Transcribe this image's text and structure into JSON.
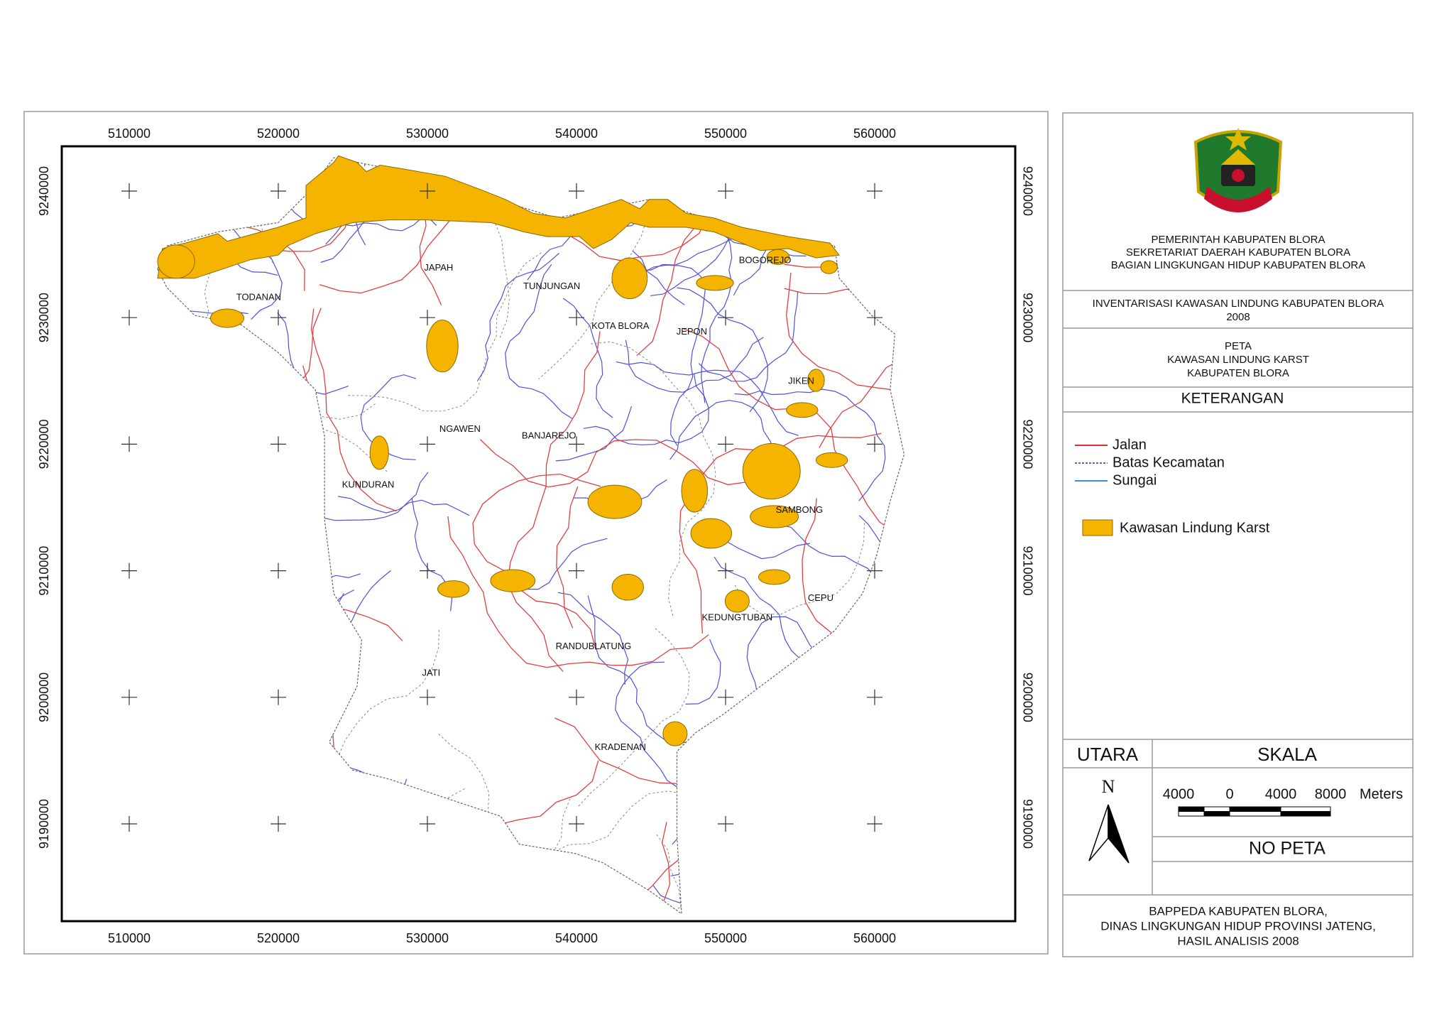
{
  "map": {
    "x_ticks": [
      510000,
      520000,
      530000,
      540000,
      550000,
      560000
    ],
    "y_ticks": [
      9240000,
      9230000,
      9220000,
      9210000,
      9200000,
      9190000
    ],
    "places": [
      "TODANAN",
      "JAPAH",
      "TUNJUNGAN",
      "KOTA BLORA",
      "JEPON",
      "BOGOREJO",
      "JIKEN",
      "NGAWEN",
      "BANJAREJO",
      "KUNDURAN",
      "SAMBONG",
      "CEPU",
      "KEDUNGTUBAN",
      "RANDUBLATUNG",
      "JATI",
      "KRADENAN"
    ]
  },
  "title_block": {
    "agency": [
      "PEMERINTAH KABUPATEN BLORA",
      "SEKRETARIAT DAERAH KABUPATEN BLORA",
      "BAGIAN LINGKUNGAN HIDUP KABUPATEN BLORA"
    ],
    "project": [
      "INVENTARISASI KAWASAN LINDUNG KABUPATEN BLORA",
      "2008"
    ],
    "map_title": [
      "PETA",
      "KAWASAN LINDUNG KARST",
      "KABUPATEN BLORA"
    ],
    "legend_heading": "KETERANGAN",
    "legend": [
      "Jalan",
      "Batas Kecamatan",
      "Sungai",
      "Kawasan Lindung Karst"
    ],
    "north_heading": "UTARA",
    "north_label": "N",
    "scale_heading": "SKALA",
    "scale_labels": [
      4000,
      0,
      4000,
      8000
    ],
    "scale_unit": "Meters",
    "map_number_label": "NO PETA",
    "source": [
      "BAPPEDA KABUPATEN BLORA,",
      "DINAS LINGKUNGAN HIDUP PROVINSI JATENG,",
      "HASIL ANALISIS 2008"
    ]
  }
}
